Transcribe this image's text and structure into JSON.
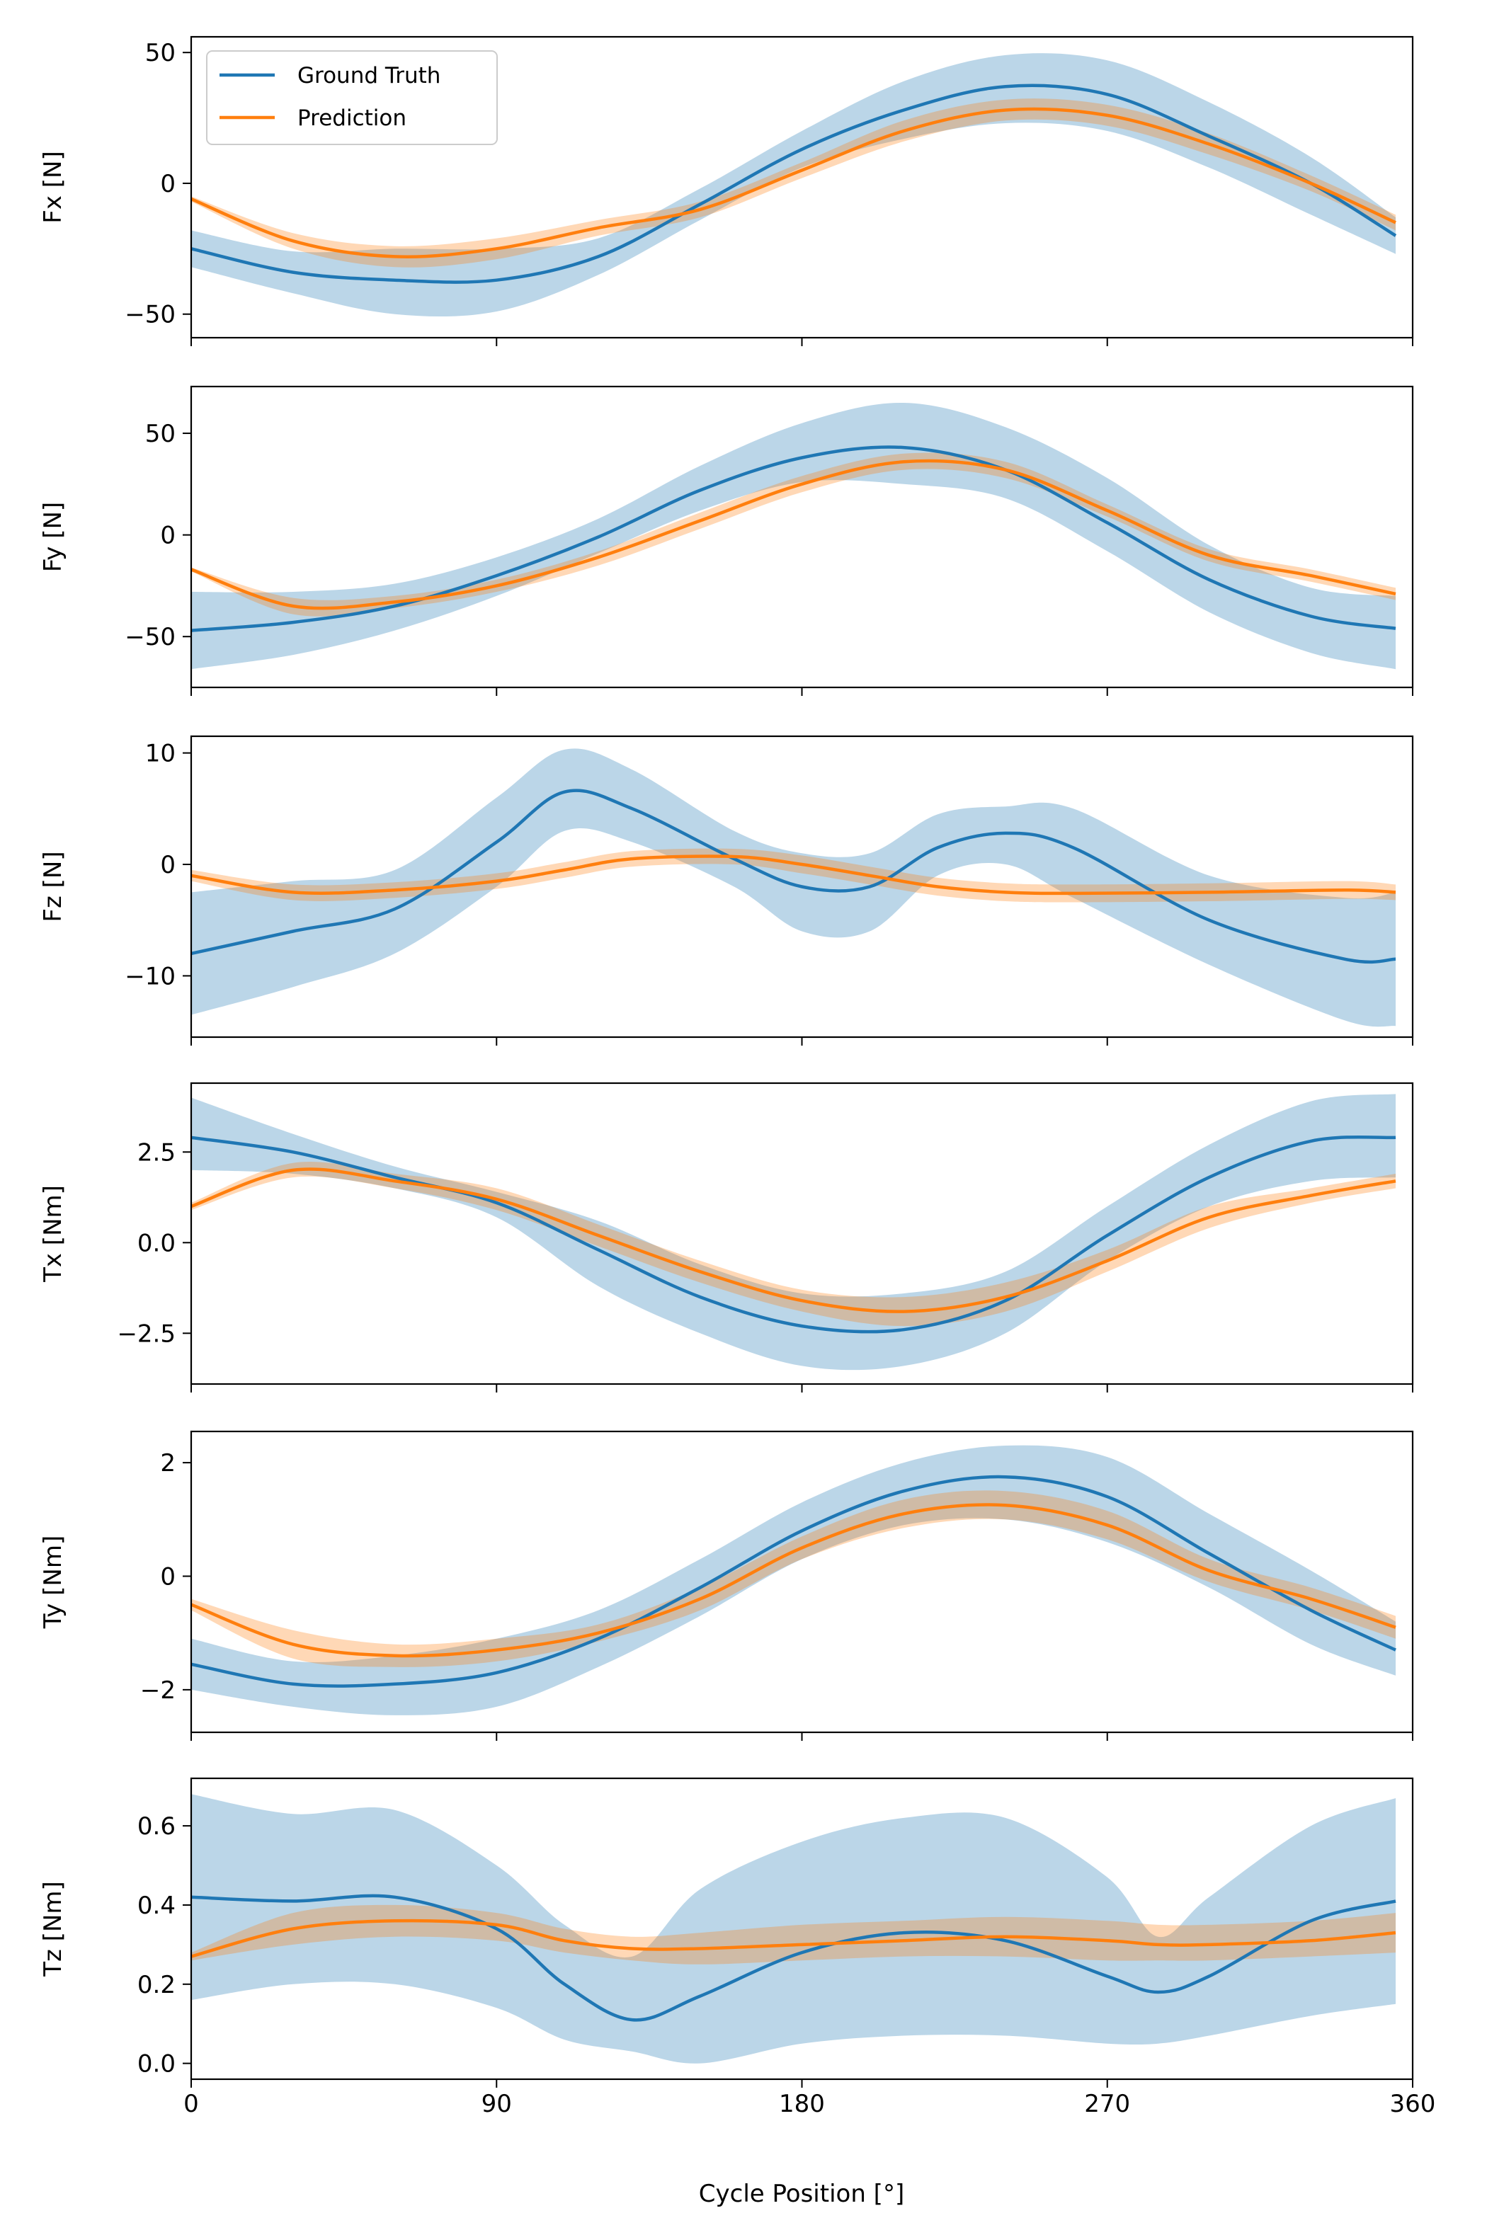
{
  "colors": {
    "ground_truth": "#1f77b4",
    "prediction": "#ff7f0e",
    "ground_truth_band": "#1f77b4",
    "prediction_band": "#ff7f0e"
  },
  "xlabel": "Cycle Position [°]",
  "legend": {
    "placement": "top-left (first panel)",
    "entries": [
      "Ground Truth",
      "Prediction"
    ]
  },
  "chart_data": [
    {
      "type": "line",
      "ylabel": "Fx [N]",
      "xlim": [
        0,
        360
      ],
      "ylim": [
        -59,
        56
      ],
      "xticks": [
        0,
        90,
        180,
        270,
        360
      ],
      "yticks": [
        -50,
        0,
        50
      ],
      "grid": false,
      "x": [
        0,
        30,
        60,
        90,
        120,
        150,
        180,
        210,
        240,
        270,
        300,
        330,
        355
      ],
      "series": [
        {
          "name": "Ground Truth",
          "values": [
            -25,
            -34,
            -37,
            -37,
            -28,
            -8,
            13,
            28,
            37,
            34,
            18,
            0,
            -20
          ],
          "lower": [
            -32,
            -42,
            -50,
            -49,
            -35,
            -14,
            6,
            17,
            23,
            20,
            6,
            -12,
            -27
          ],
          "upper": [
            -18,
            -26,
            -25,
            -25,
            -21,
            -2,
            20,
            39,
            49,
            47,
            31,
            10,
            -13
          ]
        },
        {
          "name": "Prediction",
          "values": [
            -6,
            -22,
            -28,
            -25,
            -17,
            -10,
            5,
            20,
            28,
            26,
            15,
            0,
            -15
          ],
          "lower": [
            -7,
            -25,
            -32,
            -29,
            -20,
            -13,
            2,
            16,
            24,
            22,
            11,
            -3,
            -18
          ],
          "upper": [
            -5,
            -19,
            -24,
            -21,
            -14,
            -7,
            8,
            24,
            32,
            30,
            19,
            3,
            -12
          ]
        }
      ]
    },
    {
      "type": "line",
      "ylabel": "Fy [N]",
      "xlim": [
        0,
        360
      ],
      "ylim": [
        -75,
        73
      ],
      "xticks": [
        0,
        90,
        180,
        270,
        360
      ],
      "yticks": [
        -50,
        0,
        50
      ],
      "grid": false,
      "x": [
        0,
        30,
        60,
        90,
        120,
        150,
        180,
        210,
        240,
        270,
        300,
        330,
        355
      ],
      "series": [
        {
          "name": "Ground Truth",
          "values": [
            -47,
            -43,
            -35,
            -20,
            -1,
            22,
            38,
            43,
            32,
            6,
            -22,
            -40,
            -46
          ],
          "lower": [
            -66,
            -59,
            -47,
            -30,
            -9,
            12,
            26,
            25,
            18,
            -8,
            -38,
            -58,
            -66
          ],
          "upper": [
            -28,
            -28,
            -24,
            -11,
            8,
            34,
            55,
            65,
            53,
            28,
            -5,
            -26,
            -30
          ]
        },
        {
          "name": "Prediction",
          "values": [
            -17,
            -35,
            -33,
            -25,
            -11,
            7,
            25,
            36,
            32,
            12,
            -10,
            -20,
            -29
          ],
          "lower": [
            -18,
            -39,
            -36,
            -28,
            -15,
            3,
            21,
            32,
            28,
            9,
            -13,
            -23,
            -32
          ],
          "upper": [
            -16,
            -31,
            -30,
            -22,
            -8,
            11,
            29,
            40,
            36,
            15,
            -7,
            -17,
            -26
          ]
        }
      ]
    },
    {
      "type": "line",
      "ylabel": "Fz [N]",
      "xlim": [
        0,
        360
      ],
      "ylim": [
        -15.5,
        11.5
      ],
      "xticks": [
        0,
        90,
        180,
        270,
        360
      ],
      "yticks": [
        -10,
        0,
        10
      ],
      "grid": false,
      "x": [
        0,
        30,
        60,
        90,
        110,
        130,
        160,
        180,
        200,
        220,
        240,
        260,
        300,
        340,
        355
      ],
      "series": [
        {
          "name": "Ground Truth",
          "values": [
            -8,
            -6,
            -4,
            2,
            6.5,
            5,
            0.5,
            -2,
            -2,
            1.5,
            2.8,
            1.5,
            -5,
            -8.5,
            -8.5
          ],
          "lower": [
            -13.5,
            -11,
            -8,
            -2,
            3,
            2,
            -2,
            -6,
            -6,
            -1,
            0,
            -3,
            -9,
            -14,
            -14.5
          ],
          "upper": [
            -2.5,
            -1.5,
            -0.5,
            6,
            10.3,
            8.5,
            3,
            1,
            1,
            4.5,
            5.2,
            5,
            -1,
            -3,
            -2.5
          ]
        },
        {
          "name": "Prediction",
          "values": [
            -1,
            -2.5,
            -2.3,
            -1.5,
            -0.5,
            0.5,
            0.7,
            0,
            -1,
            -2,
            -2.5,
            -2.6,
            -2.5,
            -2.3,
            -2.5
          ],
          "lower": [
            -1.5,
            -3.2,
            -3,
            -2.2,
            -1.2,
            -0.2,
            0,
            -0.8,
            -1.8,
            -2.8,
            -3.3,
            -3.4,
            -3.3,
            -3.1,
            -3.2
          ],
          "upper": [
            -0.5,
            -1.8,
            -1.6,
            -0.8,
            0.2,
            1.2,
            1.4,
            0.8,
            -0.2,
            -1.2,
            -1.7,
            -1.8,
            -1.7,
            -1.5,
            -1.8
          ]
        }
      ]
    },
    {
      "type": "line",
      "ylabel": "Tx [Nm]",
      "xlim": [
        0,
        360
      ],
      "ylim": [
        -3.9,
        4.4
      ],
      "xticks": [
        0,
        90,
        180,
        270,
        360
      ],
      "yticks": [
        -2.5,
        0.0,
        2.5
      ],
      "grid": false,
      "x": [
        0,
        30,
        60,
        90,
        120,
        150,
        180,
        210,
        240,
        270,
        300,
        330,
        355
      ],
      "series": [
        {
          "name": "Ground Truth",
          "values": [
            2.9,
            2.5,
            1.8,
            1.1,
            -0.2,
            -1.5,
            -2.3,
            -2.4,
            -1.6,
            0.2,
            1.8,
            2.8,
            2.9
          ],
          "lower": [
            2.0,
            1.9,
            1.5,
            0.7,
            -1.2,
            -2.5,
            -3.4,
            -3.4,
            -2.5,
            -0.5,
            1.0,
            1.7,
            1.8
          ],
          "upper": [
            4.0,
            3.0,
            2.1,
            1.4,
            0.6,
            -0.6,
            -1.4,
            -1.4,
            -0.8,
            1.0,
            2.7,
            3.9,
            4.1
          ]
        },
        {
          "name": "Prediction",
          "values": [
            1.0,
            2.0,
            1.7,
            1.2,
            0.2,
            -0.8,
            -1.6,
            -1.9,
            -1.5,
            -0.5,
            0.7,
            1.3,
            1.7
          ],
          "lower": [
            0.9,
            1.8,
            1.5,
            0.9,
            -0.1,
            -1.1,
            -1.9,
            -2.3,
            -1.9,
            -0.8,
            0.4,
            1.1,
            1.5
          ],
          "upper": [
            1.1,
            2.2,
            1.9,
            1.5,
            0.5,
            -0.5,
            -1.3,
            -1.5,
            -1.1,
            -0.2,
            1.0,
            1.5,
            1.9
          ]
        }
      ]
    },
    {
      "type": "line",
      "ylabel": "Ty [Nm]",
      "xlim": [
        0,
        360
      ],
      "ylim": [
        -2.75,
        2.55
      ],
      "xticks": [
        0,
        90,
        180,
        270,
        360
      ],
      "yticks": [
        -2,
        0,
        2
      ],
      "grid": false,
      "x": [
        0,
        30,
        60,
        90,
        120,
        150,
        180,
        210,
        240,
        270,
        300,
        330,
        355
      ],
      "series": [
        {
          "name": "Ground Truth",
          "values": [
            -1.55,
            -1.9,
            -1.9,
            -1.7,
            -1.1,
            -0.2,
            0.8,
            1.5,
            1.75,
            1.4,
            0.4,
            -0.6,
            -1.3
          ],
          "lower": [
            -2.0,
            -2.3,
            -2.45,
            -2.3,
            -1.6,
            -0.7,
            0.3,
            0.9,
            1.0,
            0.6,
            -0.2,
            -1.2,
            -1.75
          ],
          "upper": [
            -1.1,
            -1.5,
            -1.4,
            -1.1,
            -0.6,
            0.3,
            1.3,
            2.0,
            2.3,
            2.1,
            1.1,
            0.1,
            -0.8
          ]
        },
        {
          "name": "Prediction",
          "values": [
            -0.5,
            -1.2,
            -1.4,
            -1.3,
            -1.0,
            -0.4,
            0.5,
            1.1,
            1.25,
            0.9,
            0.1,
            -0.4,
            -0.9
          ],
          "lower": [
            -0.6,
            -1.45,
            -1.6,
            -1.5,
            -1.15,
            -0.6,
            0.3,
            0.85,
            1.0,
            0.65,
            -0.1,
            -0.6,
            -1.1
          ],
          "upper": [
            -0.4,
            -0.95,
            -1.2,
            -1.1,
            -0.85,
            -0.2,
            0.7,
            1.35,
            1.5,
            1.15,
            0.3,
            -0.2,
            -0.7
          ]
        }
      ]
    },
    {
      "type": "line",
      "ylabel": "Tz [Nm]",
      "xlim": [
        0,
        360
      ],
      "ylim": [
        -0.04,
        0.72
      ],
      "xticks": [
        0,
        90,
        180,
        270,
        360
      ],
      "yticks": [
        0.0,
        0.2,
        0.4,
        0.6
      ],
      "grid": false,
      "x": [
        0,
        30,
        60,
        90,
        110,
        130,
        150,
        180,
        210,
        240,
        270,
        285,
        300,
        330,
        355
      ],
      "series": [
        {
          "name": "Ground Truth",
          "values": [
            0.42,
            0.41,
            0.42,
            0.34,
            0.2,
            0.11,
            0.17,
            0.28,
            0.33,
            0.31,
            0.22,
            0.18,
            0.22,
            0.36,
            0.41
          ],
          "lower": [
            0.16,
            0.2,
            0.2,
            0.14,
            0.06,
            0.03,
            0.0,
            0.05,
            0.07,
            0.07,
            0.05,
            0.05,
            0.07,
            0.12,
            0.15
          ],
          "upper": [
            0.68,
            0.63,
            0.64,
            0.5,
            0.35,
            0.27,
            0.44,
            0.56,
            0.62,
            0.62,
            0.47,
            0.32,
            0.42,
            0.6,
            0.67
          ]
        },
        {
          "name": "Prediction",
          "values": [
            0.27,
            0.34,
            0.36,
            0.35,
            0.31,
            0.29,
            0.29,
            0.3,
            0.31,
            0.32,
            0.31,
            0.3,
            0.3,
            0.31,
            0.33
          ],
          "lower": [
            0.26,
            0.3,
            0.32,
            0.31,
            0.28,
            0.26,
            0.25,
            0.26,
            0.27,
            0.27,
            0.26,
            0.26,
            0.26,
            0.27,
            0.28
          ],
          "upper": [
            0.28,
            0.38,
            0.4,
            0.38,
            0.34,
            0.32,
            0.33,
            0.35,
            0.36,
            0.37,
            0.36,
            0.35,
            0.35,
            0.36,
            0.38
          ]
        }
      ]
    }
  ]
}
